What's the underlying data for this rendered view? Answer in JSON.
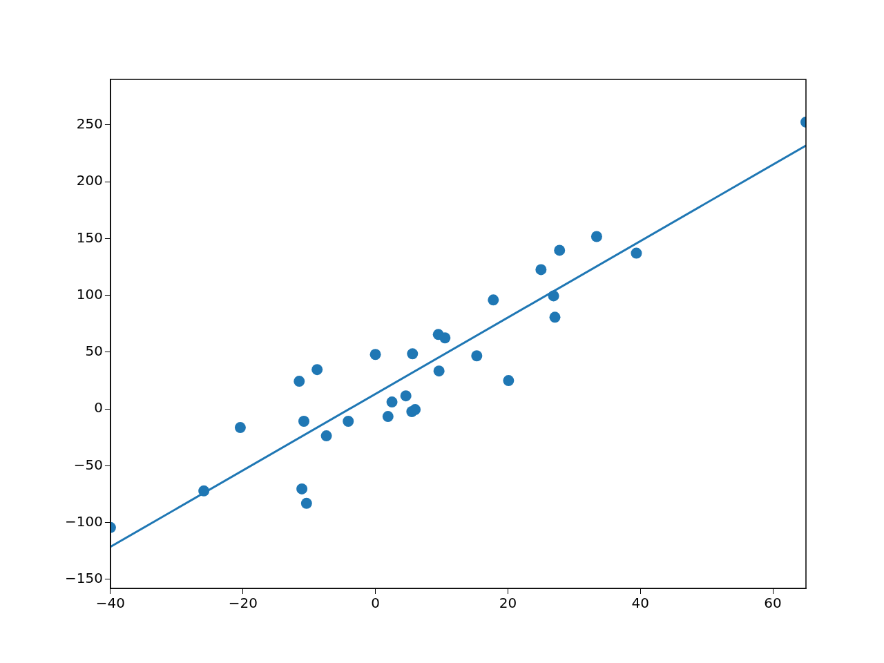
{
  "chart_data": {
    "type": "scatter",
    "xlim": [
      -40,
      65
    ],
    "ylim": [
      -158,
      290
    ],
    "xticks": [
      -40,
      -20,
      0,
      20,
      40,
      60
    ],
    "yticks": [
      -150,
      -100,
      -50,
      0,
      50,
      100,
      150,
      200,
      250
    ],
    "grid": false,
    "legend": false,
    "marker": "circle",
    "series": [
      {
        "color": "#1f77b4",
        "x": [
          -40,
          -25.9,
          -20.4,
          -11.5,
          -8.8,
          -10.8,
          -11.1,
          -10.4,
          -7.4,
          -4.1,
          0,
          1.9,
          2.5,
          4.6,
          5.5,
          6.0,
          5.6,
          9.5,
          10.5,
          9.6,
          15.3,
          17.8,
          20.1,
          25.0,
          26.9,
          27.1,
          27.8,
          33.4,
          39.4,
          65.0
        ],
        "values": [
          -104.4,
          -72.2,
          -16.4,
          24.3,
          34.6,
          -10.9,
          -70.4,
          -83.1,
          -23.7,
          -10.9,
          47.9,
          -6.7,
          6.1,
          11.5,
          -2.4,
          -0.6,
          48.5,
          65.5,
          62.5,
          33.4,
          46.7,
          95.9,
          24.9,
          122.6,
          99.5,
          80.7,
          139.6,
          151.7,
          137.1,
          252.4
        ]
      },
      {
        "type": "line",
        "marker": "none",
        "color": "#1f77b4",
        "x": [
          -40,
          65
        ],
        "values": [
          -121.4,
          231.8
        ]
      }
    ]
  }
}
